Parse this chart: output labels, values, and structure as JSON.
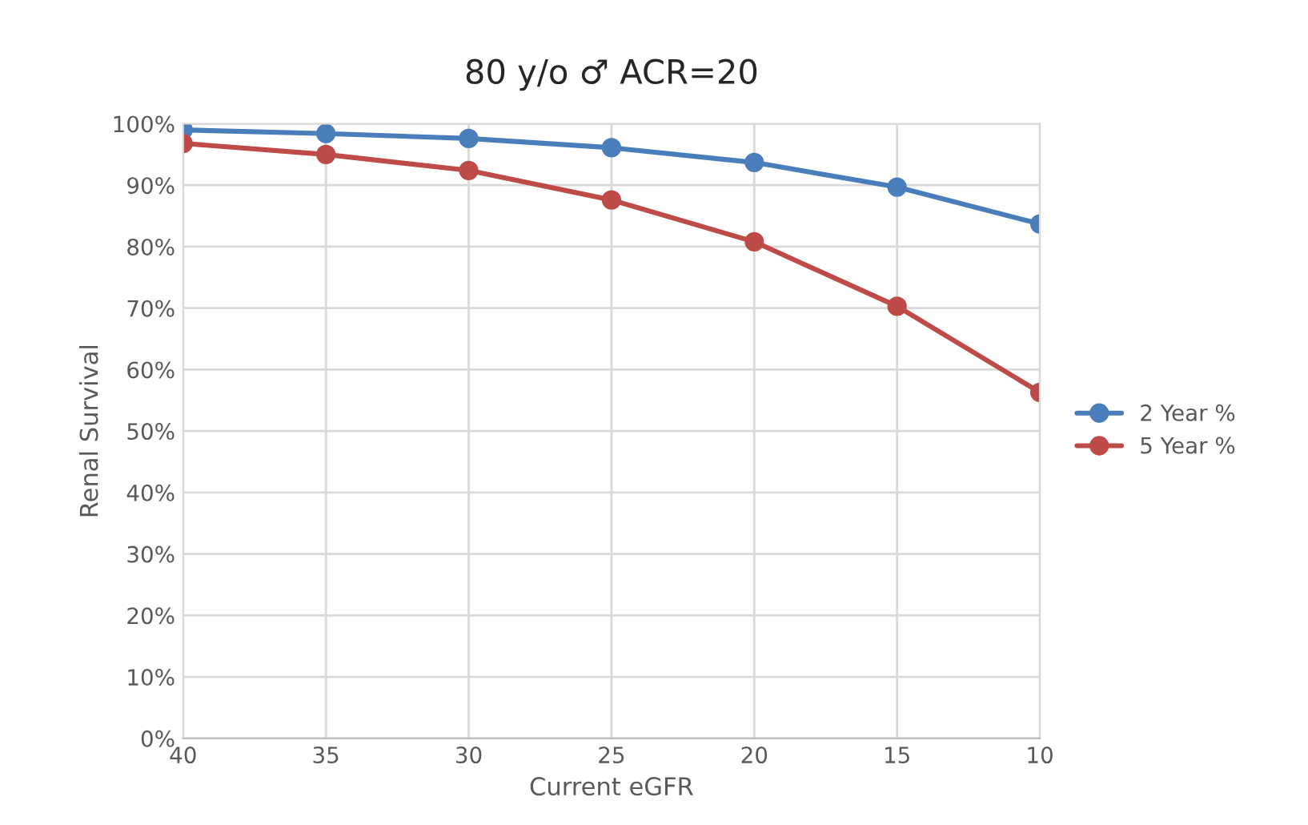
{
  "chart_data": {
    "type": "line",
    "title": "80 y/o ♂ ACR=20",
    "xlabel": "Current eGFR",
    "ylabel": "Renal Survival",
    "categories": [
      "40",
      "35",
      "30",
      "25",
      "20",
      "15",
      "10"
    ],
    "series": [
      {
        "name": "2 Year %",
        "color": "#4a7ebb",
        "values": [
          99.0,
          98.4,
          97.6,
          96.1,
          93.7,
          89.7,
          83.7
        ]
      },
      {
        "name": "5 Year %",
        "color": "#be4b48",
        "values": [
          96.8,
          95.0,
          92.4,
          87.6,
          80.8,
          70.3,
          56.3
        ]
      }
    ],
    "ylim": [
      0,
      100
    ],
    "yticks": [
      {
        "value": 0,
        "label": "0%"
      },
      {
        "value": 10,
        "label": "10%"
      },
      {
        "value": 20,
        "label": "20%"
      },
      {
        "value": 30,
        "label": "30%"
      },
      {
        "value": 40,
        "label": "40%"
      },
      {
        "value": 50,
        "label": "50%"
      },
      {
        "value": 60,
        "label": "60%"
      },
      {
        "value": 70,
        "label": "70%"
      },
      {
        "value": 80,
        "label": "80%"
      },
      {
        "value": 90,
        "label": "90%"
      },
      {
        "value": 100,
        "label": "100%"
      }
    ],
    "grid": true,
    "legend": "right",
    "marker": "circle",
    "line_style": "solid"
  }
}
